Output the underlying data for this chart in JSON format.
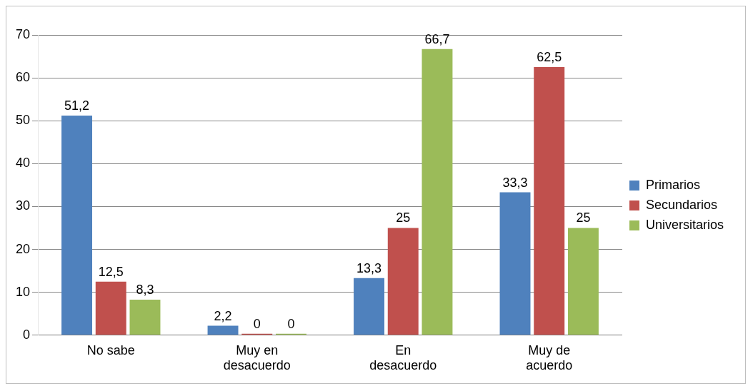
{
  "chart_data": {
    "type": "bar",
    "categories": [
      "No sabe",
      "Muy en desacuerdo",
      "En desacuerdo",
      "Muy de acuerdo"
    ],
    "series": [
      {
        "name": "Primarios",
        "color": "#4f81bd",
        "values": [
          51.2,
          2.2,
          13.3,
          33.3
        ],
        "value_labels": [
          "51,2",
          "2,2",
          "13,3",
          "33,3"
        ]
      },
      {
        "name": "Secundarios",
        "color": "#c0504d",
        "values": [
          12.5,
          0,
          25,
          62.5
        ],
        "value_labels": [
          "12,5",
          "0",
          "25",
          "62,5"
        ]
      },
      {
        "name": "Universitarios",
        "color": "#9bbb59",
        "values": [
          8.3,
          0,
          66.7,
          25
        ],
        "value_labels": [
          "8,3",
          "0",
          "66,7",
          "25"
        ]
      }
    ],
    "ylim": [
      0,
      70
    ],
    "yticks": [
      0,
      10,
      20,
      30,
      40,
      50,
      60,
      70
    ],
    "grid": "y",
    "legend": "right"
  }
}
